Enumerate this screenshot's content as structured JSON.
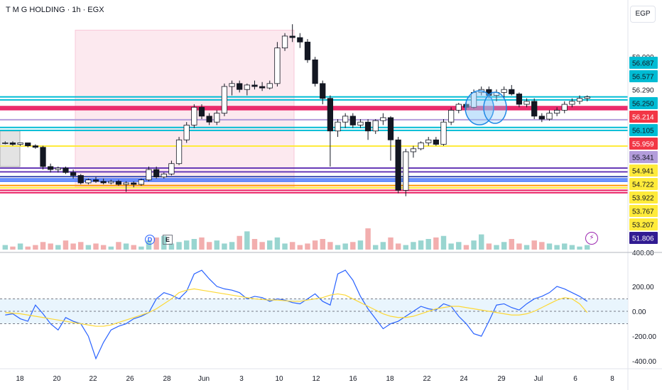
{
  "header": {
    "title": "T M G HOLDING · 1h · EGX",
    "currency": "EGP"
  },
  "events": {
    "dividend": "D",
    "earnings": "E",
    "flash": "⚡"
  },
  "chart_data": {
    "type": "candlestick",
    "price_axis": {
      "range": [
        51.5,
        59.2
      ],
      "ticks": [
        "58.000"
      ],
      "levels": [
        {
          "value": 56.687,
          "label": "56.687",
          "color": "#00bcd4",
          "kind": "tag"
        },
        {
          "value": 56.577,
          "label": "56.577",
          "color": "#00bcd4",
          "kind": "tag"
        },
        {
          "value": 56.29,
          "label": "56.290",
          "color": "#ffffff",
          "kind": "plain"
        },
        {
          "value": 56.25,
          "label": "56.250",
          "color": "#00bcd4",
          "kind": "tag"
        },
        {
          "value": 56.214,
          "label": "56.214",
          "color": "#f23645",
          "kind": "tag"
        },
        {
          "value": 56.105,
          "label": "56.105",
          "color": "#00bcd4",
          "kind": "tag"
        },
        {
          "value": 55.959,
          "label": "55.959",
          "color": "#f23645",
          "kind": "tag"
        },
        {
          "value": 55.341,
          "label": "55.341",
          "color": "#b39ddb",
          "kind": "tag"
        },
        {
          "value": 54.941,
          "label": "54.941",
          "color": "#ffeb3b",
          "kind": "tag"
        },
        {
          "value": 54.722,
          "label": "54.722",
          "color": "#ffeb3b",
          "kind": "tag"
        },
        {
          "value": 53.922,
          "label": "53.922",
          "color": "#ffeb3b",
          "kind": "tag"
        },
        {
          "value": 53.767,
          "label": "53.767",
          "color": "#ffeb3b",
          "kind": "tag"
        },
        {
          "value": 53.207,
          "label": "53.207",
          "color": "#ffeb3b",
          "kind": "tag"
        },
        {
          "value": 51.806,
          "label": "51.806",
          "color": "#311b92",
          "kind": "tag"
        }
      ],
      "hlines": [
        {
          "value": 56.65,
          "color": "#00bcd4"
        },
        {
          "value": 56.55,
          "color": "#00bcd4"
        },
        {
          "value": 56.32,
          "color": "#e91e63"
        },
        {
          "value": 56.27,
          "color": "#e91e63"
        },
        {
          "value": 56.22,
          "color": "#e91e63"
        },
        {
          "value": 55.88,
          "color": "#b39ddb"
        },
        {
          "value": 55.62,
          "color": "#00bcd4"
        },
        {
          "value": 55.52,
          "color": "#00bcd4"
        },
        {
          "value": 54.99,
          "color": "#ffeb3b"
        },
        {
          "value": 54.25,
          "color": "#673ab7"
        },
        {
          "value": 54.12,
          "color": "#673ab7"
        },
        {
          "value": 53.96,
          "color": "#3f51b5"
        },
        {
          "value": 53.88,
          "color": "#2962ff"
        },
        {
          "value": 53.81,
          "color": "#2962ff"
        },
        {
          "value": 53.66,
          "color": "#ff9800"
        },
        {
          "value": 53.58,
          "color": "#ffeb3b"
        },
        {
          "value": 53.5,
          "color": "#e91e63"
        },
        {
          "value": 53.42,
          "color": "#e91e63"
        }
      ],
      "zones": [
        {
          "x0": 20.8,
          "x1": 12.2,
          "y0": 53.6,
          "y1": 58.9,
          "color": "#fce4ec"
        },
        {
          "x0": 14.85,
          "x1": 16.2,
          "y0": 54.3,
          "y1": 55.5,
          "color": "#e0e0e0"
        }
      ]
    },
    "time_axis": {
      "ticks": [
        "18",
        "20",
        "22",
        "26",
        "28",
        "Jun",
        "3",
        "10",
        "12",
        "16",
        "18",
        "22",
        "24",
        "29",
        "Jul",
        "6",
        "8"
      ]
    },
    "candles": [
      [
        55.1,
        55.15,
        55.05,
        55.1
      ],
      [
        55.1,
        55.15,
        55.0,
        55.05
      ],
      [
        55.05,
        55.1,
        55.0,
        55.1
      ],
      [
        55.1,
        55.1,
        54.95,
        55.0
      ],
      [
        55.0,
        55.05,
        54.9,
        54.95
      ],
      [
        54.95,
        55.0,
        54.2,
        54.3
      ],
      [
        54.3,
        54.4,
        54.1,
        54.2
      ],
      [
        54.2,
        54.3,
        54.1,
        54.25
      ],
      [
        54.25,
        54.3,
        54.05,
        54.1
      ],
      [
        54.1,
        54.2,
        53.9,
        54.0
      ],
      [
        54.0,
        54.05,
        53.7,
        53.75
      ],
      [
        53.75,
        53.9,
        53.7,
        53.85
      ],
      [
        53.85,
        53.95,
        53.75,
        53.8
      ],
      [
        53.8,
        53.9,
        53.7,
        53.75
      ],
      [
        53.75,
        53.85,
        53.7,
        53.8
      ],
      [
        53.8,
        53.85,
        53.65,
        53.7
      ],
      [
        53.7,
        53.8,
        53.45,
        53.75
      ],
      [
        53.75,
        53.8,
        53.6,
        53.7
      ],
      [
        53.7,
        53.9,
        53.65,
        53.85
      ],
      [
        53.85,
        54.3,
        53.8,
        54.2
      ],
      [
        54.2,
        54.3,
        53.9,
        53.95
      ],
      [
        53.95,
        54.1,
        53.9,
        54.05
      ],
      [
        54.05,
        54.5,
        54.0,
        54.4
      ],
      [
        54.4,
        55.3,
        54.35,
        55.2
      ],
      [
        55.2,
        55.8,
        55.1,
        55.7
      ],
      [
        55.7,
        56.4,
        55.6,
        56.3
      ],
      [
        56.3,
        56.4,
        55.9,
        56.0
      ],
      [
        56.0,
        56.1,
        55.7,
        55.8
      ],
      [
        55.8,
        56.2,
        55.7,
        56.1
      ],
      [
        56.1,
        57.1,
        56.0,
        57.0
      ],
      [
        57.0,
        57.2,
        56.7,
        57.1
      ],
      [
        57.1,
        57.2,
        56.8,
        56.9
      ],
      [
        56.9,
        57.1,
        56.7,
        57.05
      ],
      [
        57.05,
        57.2,
        56.9,
        57.0
      ],
      [
        57.0,
        57.15,
        56.85,
        56.95
      ],
      [
        56.95,
        57.2,
        56.9,
        57.1
      ],
      [
        57.1,
        58.5,
        57.0,
        58.3
      ],
      [
        58.3,
        58.8,
        58.2,
        58.7
      ],
      [
        58.7,
        59.1,
        58.5,
        58.65
      ],
      [
        58.65,
        58.8,
        58.3,
        58.5
      ],
      [
        58.5,
        58.6,
        57.8,
        57.9
      ],
      [
        57.9,
        58.0,
        57.0,
        57.1
      ],
      [
        57.1,
        57.2,
        56.4,
        56.6
      ],
      [
        56.6,
        56.7,
        54.3,
        55.5
      ],
      [
        55.5,
        55.9,
        55.3,
        55.8
      ],
      [
        55.8,
        56.1,
        55.6,
        56.0
      ],
      [
        56.0,
        56.1,
        55.6,
        55.7
      ],
      [
        55.7,
        55.9,
        55.6,
        55.8
      ],
      [
        55.8,
        55.9,
        55.2,
        55.5
      ],
      [
        55.5,
        55.9,
        55.4,
        55.85
      ],
      [
        55.85,
        56.1,
        55.7,
        55.95
      ],
      [
        55.95,
        56.0,
        54.5,
        55.2
      ],
      [
        55.2,
        55.3,
        53.4,
        53.5
      ],
      [
        53.5,
        54.9,
        53.3,
        54.8
      ],
      [
        54.8,
        55.0,
        54.6,
        54.9
      ],
      [
        54.9,
        55.15,
        54.85,
        55.1
      ],
      [
        55.1,
        55.3,
        55.0,
        55.2
      ],
      [
        55.2,
        55.3,
        55.0,
        55.05
      ],
      [
        55.05,
        55.9,
        55.0,
        55.8
      ],
      [
        55.8,
        56.3,
        55.7,
        56.2
      ],
      [
        56.2,
        56.45,
        56.1,
        56.4
      ],
      [
        56.4,
        56.5,
        56.2,
        56.3
      ],
      [
        56.3,
        56.9,
        56.25,
        56.8
      ],
      [
        56.8,
        57.0,
        56.7,
        56.9
      ],
      [
        56.9,
        57.0,
        56.6,
        56.7
      ],
      [
        56.7,
        56.9,
        56.5,
        56.8
      ],
      [
        56.8,
        57.0,
        56.6,
        56.9
      ],
      [
        56.9,
        57.05,
        56.7,
        56.75
      ],
      [
        56.75,
        56.8,
        56.3,
        56.4
      ],
      [
        56.4,
        56.6,
        56.3,
        56.5
      ],
      [
        56.5,
        56.6,
        55.9,
        56.0
      ],
      [
        56.0,
        56.1,
        55.8,
        55.9
      ],
      [
        55.9,
        56.2,
        55.85,
        56.1
      ],
      [
        56.1,
        56.3,
        56.0,
        56.2
      ],
      [
        56.2,
        56.5,
        56.1,
        56.4
      ],
      [
        56.4,
        56.6,
        56.3,
        56.5
      ],
      [
        56.5,
        56.7,
        56.4,
        56.6
      ],
      [
        56.6,
        56.7,
        56.5,
        56.65
      ]
    ],
    "volume": [
      3,
      2,
      4,
      2,
      3,
      5,
      4,
      3,
      6,
      4,
      5,
      3,
      4,
      3,
      2,
      5,
      4,
      3,
      2,
      6,
      8,
      9,
      4,
      5,
      6,
      7,
      8,
      5,
      6,
      4,
      5,
      9,
      12,
      7,
      5,
      6,
      8,
      4,
      5,
      3,
      4,
      6,
      7,
      5,
      3,
      4,
      5,
      6,
      14,
      3,
      5,
      8,
      4,
      3,
      5,
      6,
      7,
      8,
      9,
      4,
      5,
      3,
      6,
      10,
      4,
      3,
      5,
      7,
      4,
      3,
      6,
      5,
      4,
      3,
      4,
      3,
      2,
      3
    ],
    "volume_axis": {
      "ticks": [
        "400.00"
      ]
    },
    "oscillator": {
      "range": [
        -450,
        450
      ],
      "ticks": [
        "200.00",
        "0.00",
        "-200.00",
        "-400.00"
      ],
      "band": [
        100,
        -100
      ],
      "main": [
        -30,
        -20,
        -60,
        -80,
        50,
        -20,
        -100,
        -150,
        -50,
        -80,
        -100,
        -200,
        -380,
        -250,
        -150,
        -120,
        -100,
        -60,
        -40,
        -10,
        100,
        150,
        130,
        100,
        160,
        300,
        330,
        260,
        200,
        180,
        170,
        150,
        100,
        120,
        110,
        80,
        100,
        90,
        70,
        60,
        100,
        140,
        80,
        50,
        300,
        330,
        250,
        120,
        20,
        -60,
        -140,
        -100,
        -80,
        -40,
        0,
        40,
        20,
        10,
        60,
        40,
        -40,
        -100,
        -180,
        -200,
        -80,
        50,
        60,
        30,
        10,
        60,
        100,
        120,
        150,
        200,
        180,
        150,
        120,
        80
      ],
      "signal": [
        -10,
        -15,
        -20,
        -30,
        -40,
        -50,
        -60,
        -70,
        -80,
        -90,
        -100,
        -110,
        -120,
        -120,
        -110,
        -90,
        -70,
        -50,
        -30,
        -10,
        20,
        60,
        100,
        150,
        170,
        180,
        170,
        160,
        150,
        140,
        130,
        120,
        110,
        100,
        95,
        90,
        90,
        85,
        80,
        80,
        90,
        100,
        110,
        130,
        140,
        130,
        100,
        70,
        40,
        10,
        -20,
        -40,
        -50,
        -50,
        -40,
        -20,
        0,
        20,
        30,
        40,
        40,
        30,
        20,
        10,
        0,
        -10,
        -20,
        -30,
        -30,
        -20,
        0,
        30,
        60,
        90,
        110,
        100,
        60,
        -10
      ]
    }
  }
}
